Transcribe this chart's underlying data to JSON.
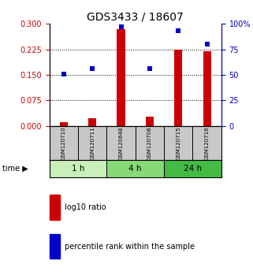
{
  "title": "GDS3433 / 18607",
  "samples": [
    "GSM120710",
    "GSM120711",
    "GSM120648",
    "GSM120708",
    "GSM120715",
    "GSM120716"
  ],
  "log10_ratio": [
    0.012,
    0.022,
    0.285,
    0.028,
    0.225,
    0.22
  ],
  "percentile_rank": [
    51,
    56,
    97,
    56,
    93,
    80
  ],
  "time_groups": [
    {
      "label": "1 h",
      "samples": [
        0,
        1
      ],
      "color": "#c8f0b8"
    },
    {
      "label": "4 h",
      "samples": [
        2,
        3
      ],
      "color": "#88d878"
    },
    {
      "label": "24 h",
      "samples": [
        4,
        5
      ],
      "color": "#44bb44"
    }
  ],
  "bar_color": "#cc0000",
  "square_color": "#0000cc",
  "left_yticks": [
    0,
    0.075,
    0.15,
    0.225,
    0.3
  ],
  "right_ytick_vals": [
    0,
    25,
    50,
    75,
    100
  ],
  "right_ytick_labels": [
    "0",
    "25",
    "50",
    "75",
    "100%"
  ],
  "left_ylim": [
    0,
    0.3
  ],
  "right_ylim": [
    0,
    100
  ],
  "sample_box_color": "#c8c8c8",
  "legend_red_label": "log10 ratio",
  "legend_blue_label": "percentile rank within the sample"
}
